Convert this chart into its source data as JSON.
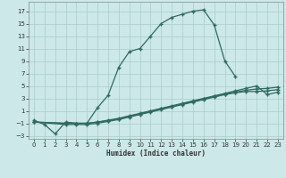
{
  "xlabel": "Humidex (Indice chaleur)",
  "background_color": "#cce8e8",
  "grid_color": "#aacccc",
  "line_color": "#2e6b5e",
  "xlim": [
    -0.5,
    23.5
  ],
  "ylim": [
    -3.5,
    18.5
  ],
  "xticks": [
    0,
    1,
    2,
    3,
    4,
    5,
    6,
    7,
    8,
    9,
    10,
    11,
    12,
    13,
    14,
    15,
    16,
    17,
    18,
    19,
    20,
    21,
    22,
    23
  ],
  "yticks": [
    -3,
    -1,
    1,
    3,
    5,
    7,
    9,
    11,
    13,
    15,
    17
  ],
  "curve1_x": [
    0,
    1,
    2,
    3,
    4,
    5,
    6,
    7,
    8,
    9,
    10,
    11,
    12,
    13,
    14,
    15,
    16,
    17,
    18,
    19
  ],
  "curve1_y": [
    -0.5,
    -1.2,
    -2.7,
    -0.8,
    -1.0,
    -1.0,
    1.5,
    3.5,
    8.0,
    10.5,
    11.0,
    13.0,
    15.0,
    16.0,
    16.5,
    17.0,
    17.2,
    14.8,
    9.0,
    6.5
  ],
  "curve2_x": [
    0,
    3,
    4,
    5,
    6,
    7,
    8,
    9,
    10,
    11,
    12,
    13,
    14,
    15,
    16,
    17,
    18,
    19,
    20,
    21,
    22,
    23
  ],
  "curve2_y": [
    -0.8,
    -1.0,
    -1.0,
    -1.0,
    -0.8,
    -0.5,
    -0.2,
    0.2,
    0.6,
    1.0,
    1.4,
    1.8,
    2.2,
    2.6,
    3.0,
    3.4,
    3.8,
    4.2,
    4.6,
    5.0,
    3.6,
    4.0
  ],
  "curve3_x": [
    0,
    3,
    4,
    5,
    6,
    7,
    8,
    9,
    10,
    11,
    12,
    13,
    14,
    15,
    16,
    17,
    18,
    19,
    20,
    21,
    22,
    23
  ],
  "curve3_y": [
    -0.8,
    -1.0,
    -1.0,
    -1.0,
    -0.8,
    -0.6,
    -0.3,
    0.1,
    0.5,
    0.9,
    1.3,
    1.7,
    2.1,
    2.5,
    2.9,
    3.3,
    3.7,
    4.0,
    4.3,
    4.5,
    4.6,
    4.8
  ],
  "curve4_x": [
    0,
    3,
    4,
    5,
    6,
    7,
    8,
    9,
    10,
    11,
    12,
    13,
    14,
    15,
    16,
    17,
    18,
    19,
    20,
    21,
    22,
    23
  ],
  "curve4_y": [
    -0.8,
    -1.2,
    -1.2,
    -1.2,
    -1.0,
    -0.7,
    -0.4,
    0.0,
    0.4,
    0.8,
    1.2,
    1.6,
    2.0,
    2.4,
    2.8,
    3.2,
    3.6,
    3.9,
    4.1,
    4.1,
    4.2,
    4.4
  ]
}
